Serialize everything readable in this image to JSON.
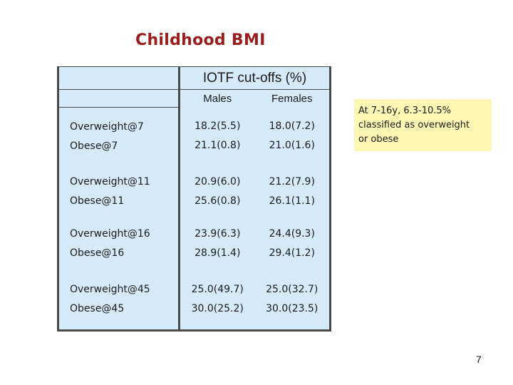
{
  "slide": {
    "title": "Childhood BMI",
    "page_number": "7"
  },
  "table": {
    "group_header": "IOTF cut-offs (%)",
    "columns": [
      "Males",
      "Females"
    ],
    "rows": [
      {
        "labels": [
          "Overweight@7",
          "Obese@7"
        ],
        "males": [
          "18.2(5.5)",
          "21.1(0.8)"
        ],
        "females": [
          "18.0(7.2)",
          "21.0(1.6)"
        ]
      },
      {
        "labels": [
          "Overweight@11",
          "Obese@11"
        ],
        "males": [
          "20.9(6.0)",
          "25.6(0.8)"
        ],
        "females": [
          "21.2(7.9)",
          "26.1(1.1)"
        ]
      },
      {
        "labels": [
          "Overweight@16",
          "Obese@16"
        ],
        "males": [
          "23.9(6.3)",
          "28.9(1.4)"
        ],
        "females": [
          "24.4(9.3)",
          "29.4(1.2)"
        ]
      },
      {
        "labels": [
          "Overweight@45",
          "Obese@45"
        ],
        "males": [
          "25.0(49.7)",
          "30.0(25.2)"
        ],
        "females": [
          "25.0(32.7)",
          "30.0(23.5)"
        ]
      }
    ]
  },
  "callout": {
    "lines": [
      "At 7-16y, 6.3-10.5%",
      "classified as overweight",
      "or obese"
    ]
  },
  "colors": {
    "title": "#9b1c1c",
    "table_background": "#d6ebfa",
    "callout_background": "#fff7b3",
    "table_border": "#4a4a4a"
  }
}
